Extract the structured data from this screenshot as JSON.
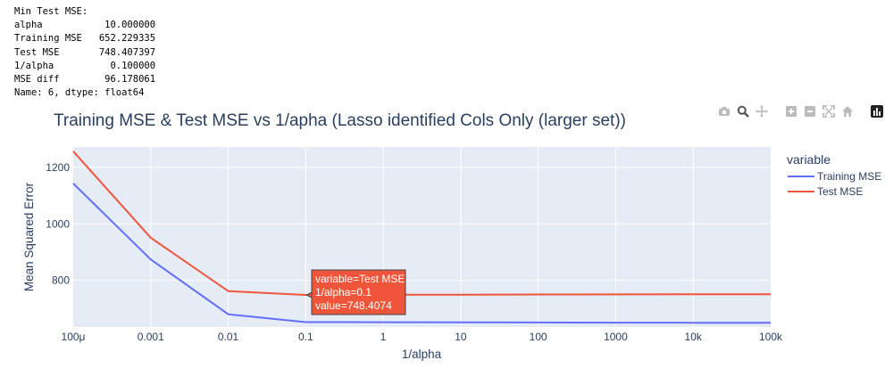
{
  "console": {
    "lines": [
      "Min Test MSE:",
      "alpha           10.000000",
      "Training MSE   652.229335",
      "Test MSE       748.407397",
      "1/alpha          0.100000",
      "MSE diff        96.178061",
      "Name: 6, dtype: float64"
    ]
  },
  "modebar": {
    "icons": [
      "camera-icon",
      "zoom-icon",
      "pan-icon",
      "zoom-in-icon",
      "zoom-out-icon",
      "autoscale-icon",
      "home-icon",
      "plotly-logo-icon"
    ]
  },
  "chart_data": {
    "type": "line",
    "title": "Training MSE & Test MSE vs 1/apha (Lasso identified Cols Only (larger set))",
    "xlabel": "1/alpha",
    "ylabel": "Mean Squared Error",
    "x_scale": "log",
    "x": [
      0.0001,
      0.001,
      0.01,
      0.1,
      1,
      10,
      100,
      1000,
      10000,
      100000
    ],
    "x_tick_values": [
      0.0001,
      0.001,
      0.01,
      0.1,
      1,
      10,
      100,
      1000,
      10000,
      100000
    ],
    "x_tick_labels": [
      "100μ",
      "0.001",
      "0.01",
      "0.1",
      "1",
      "10",
      "100",
      "1000",
      "10k",
      "100k"
    ],
    "y_tick_values": [
      800,
      1000,
      1200
    ],
    "y_tick_labels": [
      "800",
      "1000",
      "1200"
    ],
    "ylim": [
      635,
      1272
    ],
    "grid": true,
    "legend": {
      "title": "variable",
      "placement": "right"
    },
    "series": [
      {
        "name": "Training MSE",
        "color": "#636efa",
        "values": [
          1143,
          874,
          680,
          652.229335,
          652,
          651.5,
          651,
          650.5,
          650.2,
          650
        ]
      },
      {
        "name": "Test MSE",
        "color": "#ef553b",
        "values": [
          1257,
          951,
          762,
          748.407397,
          749,
          749.5,
          750,
          750.5,
          751,
          751.2
        ]
      }
    ],
    "hover": {
      "series_index": 1,
      "point_index": 3,
      "lines": [
        "variable=Test MSE",
        "1/alpha=0.1",
        "value=748.4074"
      ]
    }
  }
}
